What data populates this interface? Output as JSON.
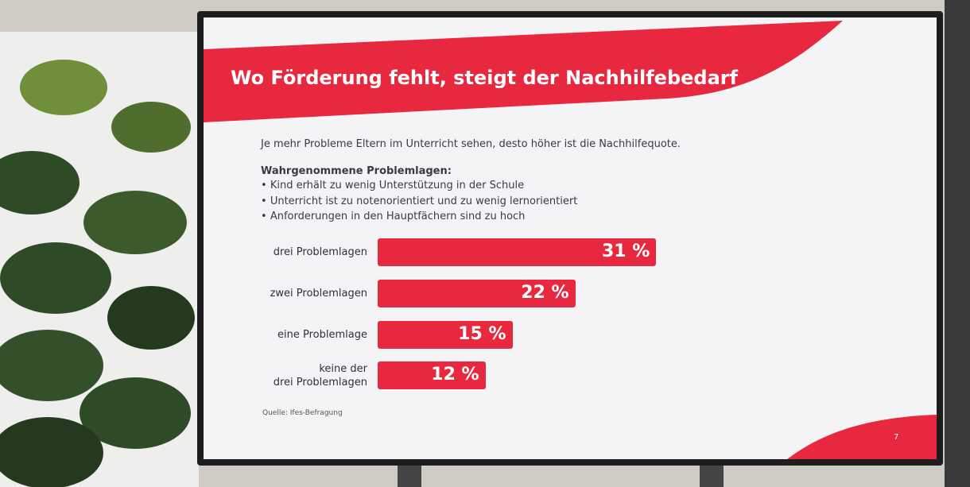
{
  "slide": {
    "title": "Wo Förderung fehlt, steigt der Nachhilfebedarf",
    "lead": "Je mehr Probleme Eltern im Unterricht sehen, desto höher ist die Nachhilfequote.",
    "list_heading": "Wahrgenommene Problemlagen:",
    "list_items": [
      "Kind erhält zu wenig Unterstützung in der Schule",
      "Unterricht ist zu notenorientiert und zu wenig lernorientiert",
      "Anforderungen in den Hauptfächern sind zu hoch"
    ],
    "source": "Quelle: Ifes-Befragung",
    "page": "7"
  },
  "chart_data": {
    "type": "bar",
    "orientation": "horizontal",
    "categories": [
      "drei Problemlagen",
      "zwei Problemlagen",
      "eine Problemlage",
      "keine der\ndrei Problemlagen"
    ],
    "values": [
      31,
      22,
      15,
      12
    ],
    "value_labels": [
      "31 %",
      "22 %",
      "15 %",
      "12 %"
    ],
    "color": "#e8283f"
  }
}
